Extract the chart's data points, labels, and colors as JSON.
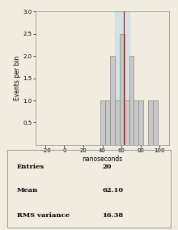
{
  "title": "",
  "xlabel": "nanoseconds",
  "ylabel": "Events per bin",
  "xlim": [
    -30,
    110
  ],
  "ylim": [
    0,
    3.0
  ],
  "yticks": [
    0.5,
    1.0,
    1.5,
    2.0,
    2.5,
    3.0
  ],
  "xticks": [
    -20,
    0,
    20,
    40,
    60,
    80,
    100
  ],
  "bin_edges": [
    38,
    43,
    48,
    53,
    58,
    63,
    68,
    73,
    78,
    83,
    88,
    93,
    98
  ],
  "bin_heights": [
    1.0,
    1.0,
    2.0,
    1.0,
    2.5,
    1.0,
    2.0,
    1.0,
    1.0,
    0.0,
    1.0,
    1.0
  ],
  "bar_color": "#c8c8c8",
  "bar_edge_color": "#888888",
  "mean": 62.1,
  "rms": 16.38,
  "entries": 20,
  "mean_line_color": "#cc0000",
  "blue_band_color": "#b8dce8",
  "blue_band_alpha": 0.5,
  "blue_band_xmin": 53,
  "blue_band_xmax": 68,
  "background_color": "#f0ece0",
  "stats_labels": [
    "Entries",
    "Mean",
    "RMS variance"
  ],
  "stats_values": [
    "20",
    "62.10",
    "16.38"
  ]
}
